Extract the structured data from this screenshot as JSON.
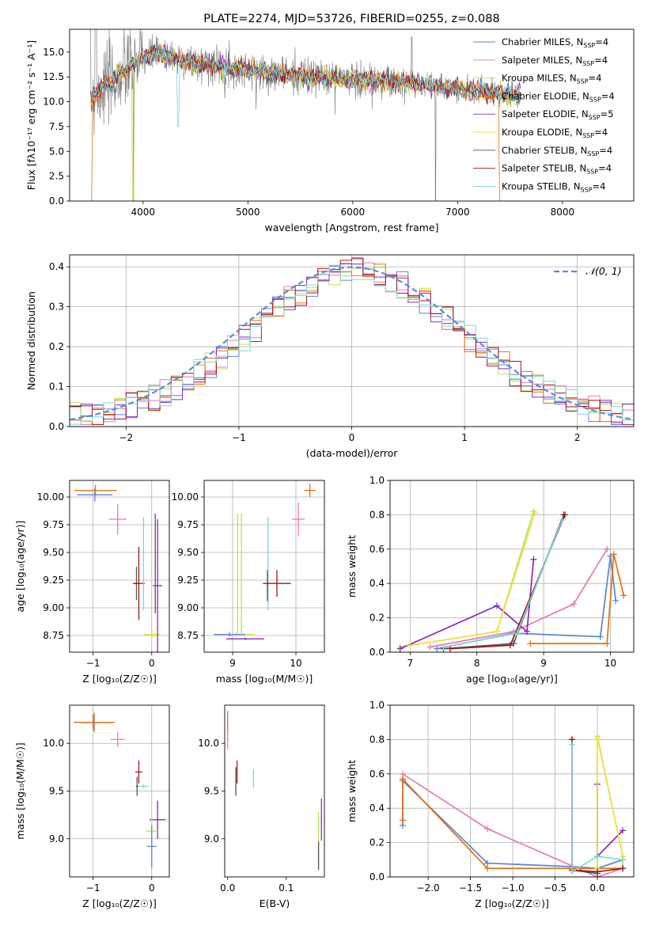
{
  "colors": {
    "Chabrier MILES": "#5b83d6",
    "Salpeter MILES": "#e67ab1",
    "Kroupa MILES": "#b6e35a",
    "Chabrier ELODIE": "#e66f10",
    "Salpeter ELODIE": "#8a2ab5",
    "Kroupa ELODIE": "#f1e23f",
    "Chabrier STELIB": "#555555",
    "Salpeter STELIB": "#a01717",
    "Kroupa STELIB": "#7ed6db",
    "gray_spectrum": "#808080",
    "normal_curve": "#5b8bd6"
  },
  "chart_data": [
    {
      "id": "spectrum",
      "type": "line",
      "title": "PLATE=2274, MJD=53726, FIBERID=0255, z=0.088",
      "xlabel": "wavelength [Angstrom, rest frame]",
      "ylabel": "Flux [fλ10⁻¹⁷ erg cm⁻² s⁻¹ A⁻¹]",
      "xlim": [
        3300,
        8680
      ],
      "ylim": [
        0,
        17.3
      ],
      "xticks": [
        "4000",
        "5000",
        "6000",
        "7000",
        "8000"
      ],
      "xtick_values": [
        4000,
        5000,
        6000,
        7000,
        8000
      ],
      "yticks": [
        "0.0",
        "2.5",
        "5.0",
        "7.5",
        "10.0",
        "12.5",
        "15.0"
      ],
      "ytick_values": [
        0,
        2.5,
        5,
        7.5,
        10,
        12.5,
        15
      ],
      "legend": [
        "Chabrier MILES, N_SSP=4",
        "Salpeter MILES, N_SSP=4",
        "Kroupa MILES, N_SSP=4",
        "Chabrier ELODIE, N_SSP=4",
        "Salpeter ELODIE, N_SSP=5",
        "Kroupa ELODIE, N_SSP=4",
        "Chabrier STELIB, N_SSP=4",
        "Salpeter STELIB, N_SSP=4",
        "Kroupa STELIB, N_SSP=4"
      ],
      "legend_position": "top-right",
      "continuum": {
        "x": [
          3500,
          3550,
          3600,
          3700,
          3800,
          3900,
          4000,
          4100,
          4300,
          4500,
          4700,
          5000,
          5300,
          5600,
          5900,
          6200,
          6500,
          6700,
          7000,
          7300,
          7600
        ],
        "y": [
          10.5,
          10.8,
          11.3,
          12.0,
          12.8,
          13.7,
          14.4,
          14.8,
          14.4,
          13.9,
          13.6,
          13.2,
          12.8,
          12.5,
          12.3,
          12.1,
          11.9,
          11.7,
          11.3,
          11.0,
          10.6
        ]
      },
      "grid": false
    },
    {
      "id": "residuals",
      "type": "line",
      "xlabel": "(data-model)/error",
      "ylabel": "Normed distribution",
      "xlim": [
        -2.5,
        2.5
      ],
      "ylim": [
        0,
        0.43
      ],
      "xticks": [
        "−2",
        "−1",
        "0",
        "1",
        "2"
      ],
      "xtick_values": [
        -2,
        -1,
        0,
        1,
        2
      ],
      "yticks": [
        "0.0",
        "0.1",
        "0.2",
        "0.3",
        "0.4"
      ],
      "ytick_values": [
        0,
        0.1,
        0.2,
        0.3,
        0.4
      ],
      "legend": [
        "𝒩(0, 1)"
      ],
      "legend_position": "top-right",
      "grid": true
    },
    {
      "id": "age_vs_Z",
      "type": "scatter",
      "xlabel": "Z [log₁₀(Z/Z☉)]",
      "ylabel": "age  [log₁₀(age/yr)]",
      "xlim": [
        -1.4,
        0.3
      ],
      "ylim": [
        8.6,
        10.15
      ],
      "xticks": [
        "−1",
        "0"
      ],
      "xtick_values": [
        -1,
        0
      ],
      "yticks": [
        "8.75",
        "9.00",
        "9.25",
        "9.50",
        "9.75",
        "10.00"
      ],
      "ytick_values": [
        8.75,
        9.0,
        9.25,
        9.5,
        9.75,
        10.0
      ],
      "points": [
        {
          "s": "Chabrier MILES",
          "x": -0.97,
          "y": 10.02,
          "xerr": 0.3,
          "yerr": 0.06
        },
        {
          "s": "Chabrier ELODIE",
          "x": -0.96,
          "y": 10.06,
          "xerr": 0.36,
          "yerr": 0.05
        },
        {
          "s": "Salpeter MILES",
          "x": -0.58,
          "y": 9.8,
          "xerr": 0.15,
          "yerr": 0.14
        },
        {
          "s": "Chabrier STELIB",
          "x": -0.26,
          "y": 9.22,
          "xerr": 0.05,
          "yerr": 0.15
        },
        {
          "s": "Salpeter STELIB",
          "x": -0.22,
          "y": 9.22,
          "xerr": 0.1,
          "yerr": 0.33
        },
        {
          "s": "Kroupa STELIB",
          "x": -0.14,
          "y": 9.4,
          "xerr": 0.01,
          "yerr": 0.42
        },
        {
          "s": "Kroupa MILES",
          "x": 0.0,
          "y": 8.76,
          "xerr": 0.14,
          "yerr": 0.03
        },
        {
          "s": "Kroupa ELODIE",
          "x": 0.04,
          "y": 8.76,
          "xerr": 0.1,
          "yerr": 0.03
        },
        {
          "s": "Salpeter ELODIE",
          "x": 0.1,
          "y": 9.2,
          "xerr": 0.08,
          "yerr": 0.6
        },
        {
          "s": "Chabrier STELIB",
          "x": 0.06,
          "y": 9.4,
          "xerr": 0.01,
          "yerr": 0.45
        }
      ],
      "grid": true
    },
    {
      "id": "age_vs_mass",
      "type": "scatter",
      "xlabel": "mass [log₁₀(M/M☉)]",
      "ylabel": "",
      "xlim": [
        8.55,
        10.45
      ],
      "ylim": [
        8.6,
        10.15
      ],
      "xticks": [
        "9",
        "10"
      ],
      "xtick_values": [
        9,
        10
      ],
      "yticks": [
        "8.75",
        "9.00",
        "9.25",
        "9.50",
        "9.75",
        "10.00"
      ],
      "ytick_values": [
        8.75,
        9.0,
        9.25,
        9.5,
        9.75,
        10.0
      ],
      "points": [
        {
          "s": "Chabrier ELODIE",
          "x": 10.22,
          "y": 10.06,
          "xerr": 0.09,
          "yerr": 0.06
        },
        {
          "s": "Salpeter MILES",
          "x": 10.04,
          "y": 9.8,
          "xerr": 0.1,
          "yerr": 0.15
        },
        {
          "s": "Kroupa STELIB",
          "x": 9.56,
          "y": 9.4,
          "xerr": 0.01,
          "yerr": 0.42
        },
        {
          "s": "Chabrier STELIB",
          "x": 9.55,
          "y": 9.2,
          "xerr": 0.01,
          "yerr": 0.14
        },
        {
          "s": "Salpeter STELIB",
          "x": 9.7,
          "y": 9.22,
          "xerr": 0.22,
          "yerr": 0.12
        },
        {
          "s": "Salpeter ELODIE",
          "x": 9.2,
          "y": 8.72,
          "xerr": 0.3,
          "yerr": 0.01
        },
        {
          "s": "Kroupa MILES",
          "x": 9.08,
          "y": 9.3,
          "xerr": 0.01,
          "yerr": 0.55
        },
        {
          "s": "Kroupa ELODIE",
          "x": 9.05,
          "y": 8.76,
          "xerr": 0.3,
          "yerr": 0.02
        },
        {
          "s": "Chabrier MILES",
          "x": 8.95,
          "y": 8.76,
          "xerr": 0.25,
          "yerr": 0.02
        },
        {
          "s": "Kroupa MILES",
          "x": 9.14,
          "y": 9.3,
          "xerr": 0.01,
          "yerr": 0.55
        }
      ],
      "grid": true
    },
    {
      "id": "weight_vs_age",
      "type": "line",
      "xlabel": "age  [log₁₀(age/yr)]",
      "ylabel": "mass weight",
      "xlim": [
        6.7,
        10.35
      ],
      "ylim": [
        0,
        1.0
      ],
      "xticks": [
        "7",
        "8",
        "9",
        "10"
      ],
      "xtick_values": [
        7,
        8,
        9,
        10
      ],
      "yticks": [
        "0.0",
        "0.2",
        "0.4",
        "0.6",
        "0.8",
        "1.0"
      ],
      "ytick_values": [
        0,
        0.2,
        0.4,
        0.6,
        0.8,
        1.0
      ],
      "series": [
        {
          "s": "Chabrier MILES",
          "x": [
            7.4,
            8.55,
            9.85,
            10.0,
            10.08
          ],
          "y": [
            0.02,
            0.11,
            0.09,
            0.56,
            0.3
          ]
        },
        {
          "s": "Salpeter MILES",
          "x": [
            7.3,
            8.55,
            9.45,
            9.95
          ],
          "y": [
            0.03,
            0.12,
            0.28,
            0.6
          ]
        },
        {
          "s": "Kroupa MILES",
          "x": [
            6.85,
            8.3,
            8.85
          ],
          "y": [
            0.03,
            0.12,
            0.82
          ]
        },
        {
          "s": "Chabrier ELODIE",
          "x": [
            8.8,
            9.95,
            10.05,
            10.2
          ],
          "y": [
            0.05,
            0.05,
            0.57,
            0.33
          ]
        },
        {
          "s": "Salpeter ELODIE",
          "x": [
            6.85,
            8.3,
            8.75,
            8.85
          ],
          "y": [
            0.02,
            0.27,
            0.12,
            0.54
          ]
        },
        {
          "s": "Kroupa ELODIE",
          "x": [
            7.0,
            8.3,
            8.87
          ],
          "y": [
            0.04,
            0.12,
            0.81
          ]
        },
        {
          "s": "Chabrier STELIB",
          "x": [
            7.5,
            8.55,
            9.3
          ],
          "y": [
            0.02,
            0.05,
            0.8
          ]
        },
        {
          "s": "Salpeter STELIB",
          "x": [
            7.6,
            8.5,
            9.32
          ],
          "y": [
            0.02,
            0.04,
            0.8
          ]
        },
        {
          "s": "Kroupa STELIB",
          "x": [
            7.5,
            8.6,
            9.28
          ],
          "y": [
            0.03,
            0.11,
            0.77
          ]
        }
      ],
      "grid": true
    },
    {
      "id": "mass_vs_Z",
      "type": "scatter",
      "xlabel": "Z [log₁₀(Z/Z☉)]",
      "ylabel": "mass [log₁₀(M/M☉)]",
      "xlim": [
        -1.4,
        0.3
      ],
      "ylim": [
        8.6,
        10.4
      ],
      "xticks": [
        "−1",
        "0"
      ],
      "xtick_values": [
        -1,
        0
      ],
      "yticks": [
        "9.0",
        "9.5",
        "10.0"
      ],
      "ytick_values": [
        9.0,
        9.5,
        10.0
      ],
      "points": [
        {
          "s": "Chabrier MILES",
          "x": -1.0,
          "y": 10.22,
          "xerr": 0.3,
          "yerr": 0.08
        },
        {
          "s": "Chabrier ELODIE",
          "x": -0.98,
          "y": 10.22,
          "xerr": 0.35,
          "yerr": 0.1
        },
        {
          "s": "Salpeter MILES",
          "x": -0.58,
          "y": 10.04,
          "xerr": 0.12,
          "yerr": 0.08
        },
        {
          "s": "Salpeter STELIB",
          "x": -0.22,
          "y": 9.7,
          "xerr": 0.06,
          "yerr": 0.12
        },
        {
          "s": "Chabrier STELIB",
          "x": -0.25,
          "y": 9.55,
          "xerr": 0.02,
          "yerr": 0.1
        },
        {
          "s": "Kroupa STELIB",
          "x": -0.14,
          "y": 9.55,
          "xerr": 0.08,
          "yerr": 0.02
        },
        {
          "s": "Salpeter ELODIE",
          "x": 0.1,
          "y": 9.2,
          "xerr": 0.14,
          "yerr": 0.2
        },
        {
          "s": "Kroupa MILES",
          "x": 0.0,
          "y": 9.08,
          "xerr": 0.1,
          "yerr": 0.15
        },
        {
          "s": "Chabrier MILES",
          "x": 0.0,
          "y": 8.92,
          "xerr": 0.08,
          "yerr": 0.22
        }
      ],
      "grid": true
    },
    {
      "id": "mass_vs_EBV",
      "type": "scatter",
      "xlabel": "E(B-V)",
      "ylabel": "",
      "xlim": [
        -0.005,
        0.165
      ],
      "ylim": [
        8.6,
        10.4
      ],
      "xticks": [
        "0.0",
        "0.1"
      ],
      "xtick_values": [
        0.0,
        0.1
      ],
      "yticks": [
        "9.0",
        "9.5",
        "10.0"
      ],
      "ytick_values": [
        9.0,
        9.5,
        10.0
      ],
      "points": [
        {
          "s": "Chabrier ELODIE",
          "x": 0.0,
          "y": 10.22,
          "xerr": 0.001,
          "yerr": 0.12
        },
        {
          "s": "Salpeter MILES",
          "x": 0.0,
          "y": 10.04,
          "xerr": 0.001,
          "yerr": 0.1
        },
        {
          "s": "Salpeter STELIB",
          "x": 0.016,
          "y": 9.7,
          "xerr": 0.001,
          "yerr": 0.12
        },
        {
          "s": "Chabrier STELIB",
          "x": 0.014,
          "y": 9.6,
          "xerr": 0.001,
          "yerr": 0.15
        },
        {
          "s": "Kroupa STELIB",
          "x": 0.044,
          "y": 9.63,
          "xerr": 0.001,
          "yerr": 0.1
        },
        {
          "s": "Salpeter ELODIE",
          "x": 0.16,
          "y": 9.2,
          "xerr": 0.001,
          "yerr": 0.22
        },
        {
          "s": "Kroupa MILES",
          "x": 0.155,
          "y": 9.08,
          "xerr": 0.001,
          "yerr": 0.2
        },
        {
          "s": "Chabrier STELIB",
          "x": 0.155,
          "y": 8.82,
          "xerr": 0.001,
          "yerr": 0.15
        }
      ],
      "grid": false
    },
    {
      "id": "weight_vs_Z",
      "type": "line",
      "xlabel": "Z [log₁₀(Z/Z☉)]",
      "ylabel": "mass weight",
      "xlim": [
        -2.45,
        0.43
      ],
      "ylim": [
        0,
        1.0
      ],
      "xticks": [
        "−2.0",
        "−1.5",
        "−1.0",
        "−0.5",
        "0.0"
      ],
      "xtick_values": [
        -2.0,
        -1.5,
        -1.0,
        -0.5,
        0.0
      ],
      "yticks": [
        "0.0",
        "0.2",
        "0.4",
        "0.6",
        "0.8",
        "1.0"
      ],
      "ytick_values": [
        0,
        0.2,
        0.4,
        0.6,
        0.8,
        1.0
      ],
      "series": [
        {
          "s": "Chabrier MILES",
          "x": [
            -2.3,
            -2.3,
            -1.3,
            -0.3,
            0.0,
            0.3
          ],
          "y": [
            0.3,
            0.56,
            0.08,
            0.06,
            0.05,
            0.1
          ]
        },
        {
          "s": "Salpeter MILES",
          "x": [
            -2.3,
            -1.3,
            0.0,
            0.3
          ],
          "y": [
            0.6,
            0.28,
            0.0,
            0.05
          ]
        },
        {
          "s": "Kroupa MILES",
          "x": [
            0.0,
            0.0,
            0.3,
            0.3
          ],
          "y": [
            0.05,
            0.82,
            0.12,
            0.05
          ]
        },
        {
          "s": "Chabrier ELODIE",
          "x": [
            -2.3,
            -2.3,
            -1.3,
            0.0,
            0.3
          ],
          "y": [
            0.33,
            0.57,
            0.05,
            0.05,
            0.05
          ]
        },
        {
          "s": "Salpeter ELODIE",
          "x": [
            0.0,
            0.0,
            0.3
          ],
          "y": [
            0.54,
            0.12,
            0.27
          ]
        },
        {
          "s": "Kroupa ELODIE",
          "x": [
            0.0,
            0.0,
            0.3
          ],
          "y": [
            0.05,
            0.81,
            0.12
          ]
        },
        {
          "s": "Chabrier STELIB",
          "x": [
            -0.3,
            -0.3,
            0.0
          ],
          "y": [
            0.8,
            0.04,
            0.02
          ]
        },
        {
          "s": "Salpeter STELIB",
          "x": [
            -0.3,
            -0.3,
            0.0,
            0.3
          ],
          "y": [
            0.8,
            0.04,
            0.03,
            0.05
          ]
        },
        {
          "s": "Kroupa STELIB",
          "x": [
            -0.3,
            -0.3,
            0.0,
            0.3
          ],
          "y": [
            0.77,
            0.03,
            0.12,
            0.1
          ]
        }
      ],
      "grid": true
    }
  ]
}
